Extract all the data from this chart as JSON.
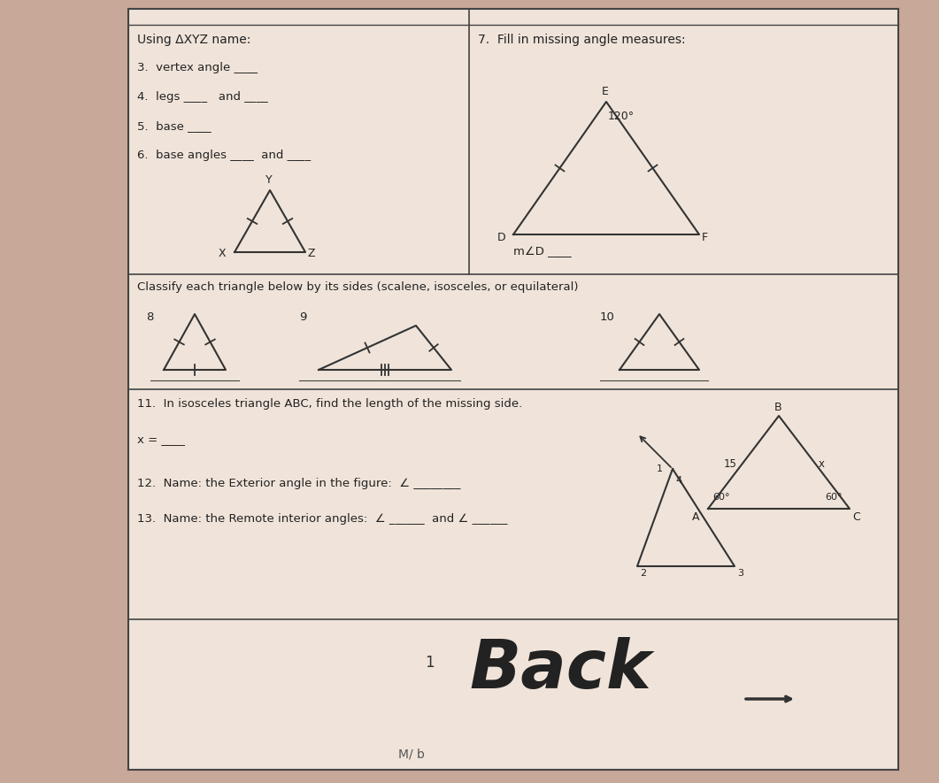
{
  "bg_color": "#c8a898",
  "paper_color": "#f0e4da",
  "line_color": "#555555",
  "text_color": "#222222",
  "title_left": "Using ΔXYZ name:",
  "title_right": "7.  Fill in missing angle measures:",
  "q3": "3.  vertex angle ____",
  "q4": "4.  legs ____   and ____",
  "q5": "5.  base ____",
  "q6": "6.  base angles ____  and ____",
  "classify_header": "Classify each triangle below by its sides (scalene, isosceles, or equilateral)",
  "q11_text": "11.  In isosceles triangle ABC, find the length of the missing side.",
  "x_equals": "x = ____",
  "m_angle_D_label": "m∠D ____",
  "q12_text": "12.  Name: the Exterior angle in the figure:  ∠ ________",
  "q13_text": "13.  Name: the Remote interior angles:  ∠ ______  and ∠ ______",
  "back_text": "Back",
  "bottom_text": "M/ b"
}
